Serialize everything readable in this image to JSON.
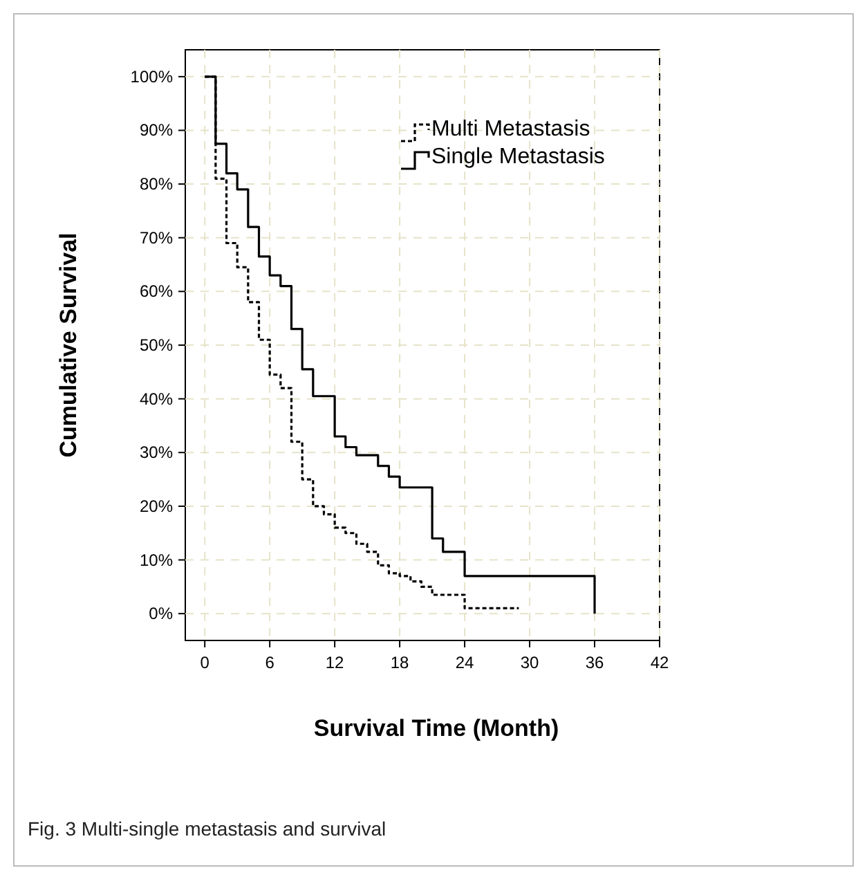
{
  "chart_data": {
    "type": "step",
    "xlabel": "Survival Time (Month)",
    "ylabel": "Cumulative Survival",
    "xlim": [
      -1.8,
      42
    ],
    "xticks": [
      0,
      6,
      12,
      18,
      24,
      30,
      36,
      42
    ],
    "ylim": [
      -5,
      105
    ],
    "yticks": [
      {
        "value": 0,
        "label": "0%"
      },
      {
        "value": 10,
        "label": "10%"
      },
      {
        "value": 20,
        "label": "20%"
      },
      {
        "value": 30,
        "label": "30%"
      },
      {
        "value": 40,
        "label": "40%"
      },
      {
        "value": 50,
        "label": "50%"
      },
      {
        "value": 60,
        "label": "60%"
      },
      {
        "value": 70,
        "label": "70%"
      },
      {
        "value": 80,
        "label": "80%"
      },
      {
        "value": 90,
        "label": "90%"
      },
      {
        "value": 100,
        "label": "100%"
      }
    ],
    "grid": true,
    "legend": "top right",
    "series": [
      {
        "name": "Multi Metastasis",
        "color": "#000000",
        "line_style": "dashed",
        "x": [
          0,
          1,
          2,
          3,
          4,
          5,
          6,
          7,
          8,
          9,
          10,
          11,
          12,
          13,
          14,
          15,
          16,
          17,
          18,
          19,
          20,
          21,
          24,
          29
        ],
        "values": [
          100,
          81,
          69,
          64.5,
          58,
          51,
          44.5,
          42,
          32,
          25,
          20,
          18.5,
          16,
          15,
          13,
          11.5,
          9,
          7.5,
          7,
          6,
          5,
          3.5,
          1,
          1
        ]
      },
      {
        "name": "Single Metastasis",
        "color": "#000000",
        "line_style": "solid",
        "x": [
          0,
          1,
          2,
          3,
          4,
          5,
          6,
          7,
          8,
          9,
          10,
          12,
          13,
          14,
          16,
          17,
          18,
          21,
          22,
          24,
          36,
          36
        ],
        "values": [
          100,
          87.5,
          82,
          79,
          72,
          66.5,
          63,
          61,
          53,
          45.5,
          40.5,
          33,
          31,
          29.5,
          27.5,
          25.5,
          23.5,
          14,
          11.5,
          7,
          7,
          0
        ]
      }
    ],
    "annotations": [
      "Fig. 3 Multi-single metastasis and survival"
    ]
  }
}
